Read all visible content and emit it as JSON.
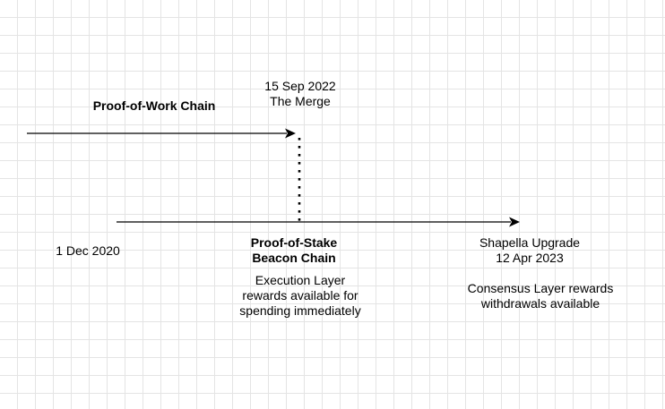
{
  "diagram": {
    "pow_chain_label": "Proof-of-Work Chain",
    "merge": {
      "date": "15 Sep 2022",
      "name": "The Merge"
    },
    "pos_start_date": "1 Dec 2020",
    "pos_chain_label": {
      "line1": "Proof-of-Stake",
      "line2": "Beacon Chain"
    },
    "execution_note": {
      "line1": "Execution Layer",
      "line2": "rewards available for",
      "line3": "spending immediately"
    },
    "shapella": {
      "name": "Shapella Upgrade",
      "date": "12 Apr 2023"
    },
    "consensus_note": {
      "line1": "Consensus Layer rewards",
      "line2": "withdrawals available"
    }
  },
  "colors": {
    "line": "#000000",
    "grid": "#e4e4e4",
    "background": "#ffffff"
  }
}
